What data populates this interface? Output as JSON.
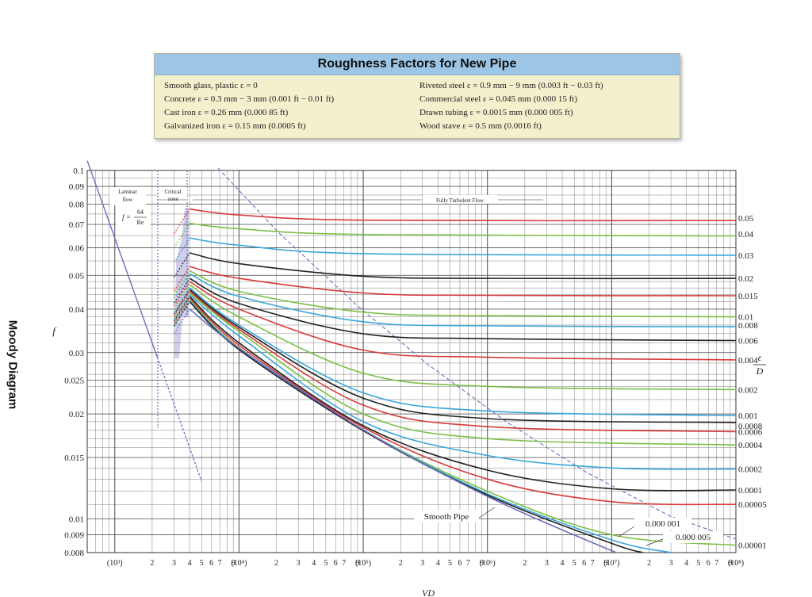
{
  "table": {
    "title": "Roughness Factors for New Pipe",
    "left": [
      "Smooth glass, plastic ε = 0",
      "Concrete ε = 0.3 mm − 3 mm (0.001 ft − 0.01 ft)",
      "Cast iron ε = 0.26 mm (0.000 85 ft)",
      "Galvanized iron ε = 0.15 mm (0.0005 ft)"
    ],
    "right": [
      "Riveted steel ε = 0.9 mm − 9 mm (0.003 ft − 0.03 ft)",
      "Commercial steel ε = 0.045 mm (0.000 15 ft)",
      "Drawn tubing ε = 0.0015 mm (0.000 005 ft)",
      "Wood stave ε = 0.5 mm (0.0016 ft)"
    ]
  },
  "side_title": "Moody Diagram",
  "colors": {
    "grid": "#4a4a4a",
    "red": "#d63a3a",
    "green": "#7cbf45",
    "blue": "#3aa6dc",
    "black": "#222222",
    "purple": "#6f6fbf",
    "critical_zone": "#c9c6e6"
  },
  "chart_data": {
    "type": "line",
    "x_scale": "log",
    "y_scale": "log",
    "xlim": [
      600,
      100000000
    ],
    "ylim": [
      0.008,
      0.1
    ],
    "ylabel": "f",
    "xlabel": "VD",
    "right_axis_label": [
      "ε",
      "D"
    ],
    "x_ticks": [
      {
        "v": 1000,
        "label": "(10³)"
      },
      {
        "v": 2000,
        "label": "2"
      },
      {
        "v": 3000,
        "label": "3"
      },
      {
        "v": 4000,
        "label": "4"
      },
      {
        "v": 5000,
        "label": "5"
      },
      {
        "v": 6000,
        "label": "6"
      },
      {
        "v": 7000,
        "label": "7"
      },
      {
        "v": 9000,
        "label": "9"
      },
      {
        "v": 10000,
        "label": "(10⁴)"
      },
      {
        "v": 20000,
        "label": "2"
      },
      {
        "v": 30000,
        "label": "3"
      },
      {
        "v": 40000,
        "label": "4"
      },
      {
        "v": 50000,
        "label": "5"
      },
      {
        "v": 60000,
        "label": "6"
      },
      {
        "v": 70000,
        "label": "7"
      },
      {
        "v": 90000,
        "label": "9"
      },
      {
        "v": 100000,
        "label": "(10⁵)"
      },
      {
        "v": 200000,
        "label": "2"
      },
      {
        "v": 300000,
        "label": "3"
      },
      {
        "v": 400000,
        "label": "4"
      },
      {
        "v": 500000,
        "label": "5"
      },
      {
        "v": 600000,
        "label": "6"
      },
      {
        "v": 700000,
        "label": "7"
      },
      {
        "v": 900000,
        "label": "9"
      },
      {
        "v": 1000000,
        "label": "(10⁶)"
      },
      {
        "v": 2000000,
        "label": "2"
      },
      {
        "v": 3000000,
        "label": "3"
      },
      {
        "v": 4000000,
        "label": "4"
      },
      {
        "v": 5000000,
        "label": "5"
      },
      {
        "v": 6000000,
        "label": "6"
      },
      {
        "v": 7000000,
        "label": "7"
      },
      {
        "v": 9000000,
        "label": "9"
      },
      {
        "v": 10000000,
        "label": "(10⁷)"
      },
      {
        "v": 20000000,
        "label": "2"
      },
      {
        "v": 30000000,
        "label": "3"
      },
      {
        "v": 40000000,
        "label": "4"
      },
      {
        "v": 50000000,
        "label": "5"
      },
      {
        "v": 60000000,
        "label": "6"
      },
      {
        "v": 70000000,
        "label": "7"
      },
      {
        "v": 90000000,
        "label": "9"
      },
      {
        "v": 100000000,
        "label": "(10⁸)"
      }
    ],
    "y_ticks": [
      {
        "v": 0.1,
        "label": "0.1"
      },
      {
        "v": 0.09,
        "label": "0.09"
      },
      {
        "v": 0.08,
        "label": "0.08"
      },
      {
        "v": 0.07,
        "label": "0.07"
      },
      {
        "v": 0.06,
        "label": "0.06"
      },
      {
        "v": 0.05,
        "label": "0.05"
      },
      {
        "v": 0.04,
        "label": "0.04"
      },
      {
        "v": 0.03,
        "label": "0.03"
      },
      {
        "v": 0.025,
        "label": "0.025"
      },
      {
        "v": 0.02,
        "label": "0.02"
      },
      {
        "v": 0.015,
        "label": "0.015"
      },
      {
        "v": 0.01,
        "label": "0.01"
      },
      {
        "v": 0.009,
        "label": "0.009"
      },
      {
        "v": 0.008,
        "label": "0.008"
      }
    ],
    "annotations": {
      "laminar": [
        "Laminar",
        "flow"
      ],
      "critical": [
        "Critical",
        "zone"
      ],
      "turbulent": "Fully Turbulent Flow",
      "formula": [
        "f =",
        "64",
        "Re"
      ],
      "smooth_pipe": "Smooth Pipe",
      "eps_small_1": "0.000 001",
      "eps_small_2": "0.000 005"
    },
    "laminar_line": {
      "x": [
        600,
        5000
      ],
      "y": [
        0.1067,
        0.0128
      ]
    },
    "series": [
      {
        "label": "0.05",
        "color": "red",
        "values": [
          [
            4000,
            0.0775
          ],
          [
            10000,
            0.0745
          ],
          [
            100000,
            0.072
          ],
          [
            100000000,
            0.0718
          ]
        ]
      },
      {
        "label": "0.04",
        "color": "green",
        "values": [
          [
            4000,
            0.0705
          ],
          [
            10000,
            0.068
          ],
          [
            100000,
            0.0655
          ],
          [
            100000000,
            0.0649
          ]
        ]
      },
      {
        "label": "0.03",
        "color": "blue",
        "values": [
          [
            4000,
            0.064
          ],
          [
            10000,
            0.061
          ],
          [
            100000,
            0.0577
          ],
          [
            100000000,
            0.0571
          ]
        ]
      },
      {
        "label": "0.02",
        "color": "black",
        "values": [
          [
            4000,
            0.058
          ],
          [
            10000,
            0.054
          ],
          [
            100000,
            0.0497
          ],
          [
            1000000,
            0.049
          ],
          [
            100000000,
            0.049
          ]
        ]
      },
      {
        "label": "0.015",
        "color": "red",
        "values": [
          [
            4000,
            0.053
          ],
          [
            10000,
            0.049
          ],
          [
            100000,
            0.0445
          ],
          [
            1000000,
            0.0438
          ],
          [
            100000000,
            0.0437
          ]
        ]
      },
      {
        "label": "0.01",
        "color": "green",
        "values": [
          [
            4000,
            0.0515
          ],
          [
            10000,
            0.045
          ],
          [
            100000,
            0.0392
          ],
          [
            1000000,
            0.0383
          ],
          [
            100000000,
            0.038
          ]
        ]
      },
      {
        "label": "0.008",
        "color": "blue",
        "values": [
          [
            4000,
            0.0505
          ],
          [
            10000,
            0.0435
          ],
          [
            100000,
            0.0368
          ],
          [
            1000000,
            0.0358
          ],
          [
            100000000,
            0.0356
          ]
        ]
      },
      {
        "label": "0.006",
        "color": "black",
        "values": [
          [
            4000,
            0.049
          ],
          [
            10000,
            0.0415
          ],
          [
            100000,
            0.034
          ],
          [
            1000000,
            0.0329
          ],
          [
            100000000,
            0.0325
          ]
        ]
      },
      {
        "label": "0.004",
        "color": "red",
        "values": [
          [
            4000,
            0.048
          ],
          [
            10000,
            0.04
          ],
          [
            100000,
            0.0305
          ],
          [
            1000000,
            0.0291
          ],
          [
            100000000,
            0.0286
          ]
        ]
      },
      {
        "label": "0.002",
        "color": "green",
        "values": [
          [
            4000,
            0.047
          ],
          [
            10000,
            0.038
          ],
          [
            100000,
            0.0262
          ],
          [
            1000000,
            0.024
          ],
          [
            100000000,
            0.0235
          ]
        ]
      },
      {
        "label": "0.001",
        "color": "blue",
        "values": [
          [
            4000,
            0.046
          ],
          [
            10000,
            0.036
          ],
          [
            100000,
            0.023
          ],
          [
            1000000,
            0.0204
          ],
          [
            100000000,
            0.0198
          ]
        ]
      },
      {
        "label": "0.0008",
        "color": "black",
        "values": [
          [
            4000,
            0.0455
          ],
          [
            10000,
            0.0355
          ],
          [
            100000,
            0.0222
          ],
          [
            1000000,
            0.0194
          ],
          [
            100000000,
            0.0189
          ]
        ]
      },
      {
        "label": "0.0006",
        "color": "red",
        "values": [
          [
            4000,
            0.045
          ],
          [
            10000,
            0.035
          ],
          [
            100000,
            0.0212
          ],
          [
            1000000,
            0.0184
          ],
          [
            100000000,
            0.0178
          ]
        ]
      },
      {
        "label": "0.0004",
        "color": "green",
        "values": [
          [
            4000,
            0.0445
          ],
          [
            10000,
            0.0345
          ],
          [
            100000,
            0.02
          ],
          [
            1000000,
            0.017
          ],
          [
            100000000,
            0.0163
          ]
        ]
      },
      {
        "label": "0.0002",
        "color": "blue",
        "values": [
          [
            4000,
            0.044
          ],
          [
            10000,
            0.0335
          ],
          [
            100000,
            0.019
          ],
          [
            1000000,
            0.0152
          ],
          [
            10000000,
            0.014
          ],
          [
            100000000,
            0.0139
          ]
        ]
      },
      {
        "label": "0.0001",
        "color": "black",
        "values": [
          [
            4000,
            0.0435
          ],
          [
            10000,
            0.032
          ],
          [
            100000,
            0.0185
          ],
          [
            1000000,
            0.0138
          ],
          [
            10000000,
            0.0122
          ],
          [
            100000000,
            0.0121
          ]
        ]
      },
      {
        "label": "0.00005",
        "color": "red",
        "values": [
          [
            4000,
            0.043
          ],
          [
            10000,
            0.0315
          ],
          [
            100000,
            0.0183
          ],
          [
            1000000,
            0.013
          ],
          [
            10000000,
            0.0112
          ],
          [
            100000000,
            0.011
          ]
        ]
      },
      {
        "label": "0.00001",
        "color": "green",
        "values": [
          [
            4000,
            0.0425
          ],
          [
            10000,
            0.031
          ],
          [
            100000,
            0.018
          ],
          [
            1000000,
            0.012
          ],
          [
            10000000,
            0.009
          ],
          [
            100000000,
            0.0084
          ]
        ]
      },
      {
        "label": "0.000 005",
        "color": "blue",
        "values": [
          [
            4000,
            0.0422
          ],
          [
            10000,
            0.0308
          ],
          [
            100000,
            0.018
          ],
          [
            1000000,
            0.0118
          ],
          [
            10000000,
            0.0087
          ],
          [
            30000000,
            0.008
          ]
        ]
      },
      {
        "label": "0.000 001",
        "color": "black",
        "values": [
          [
            4000,
            0.042
          ],
          [
            10000,
            0.0306
          ],
          [
            100000,
            0.0179
          ],
          [
            1000000,
            0.0117
          ],
          [
            10000000,
            0.0085
          ],
          [
            18000000,
            0.008
          ]
        ]
      },
      {
        "label": "Smooth Pipe",
        "color": "purple",
        "values": [
          [
            4000,
            0.04
          ],
          [
            10000,
            0.0309
          ],
          [
            100000,
            0.018
          ],
          [
            1000000,
            0.0116
          ],
          [
            10000000,
            0.0081
          ],
          [
            12000000,
            0.008
          ]
        ]
      }
    ]
  }
}
